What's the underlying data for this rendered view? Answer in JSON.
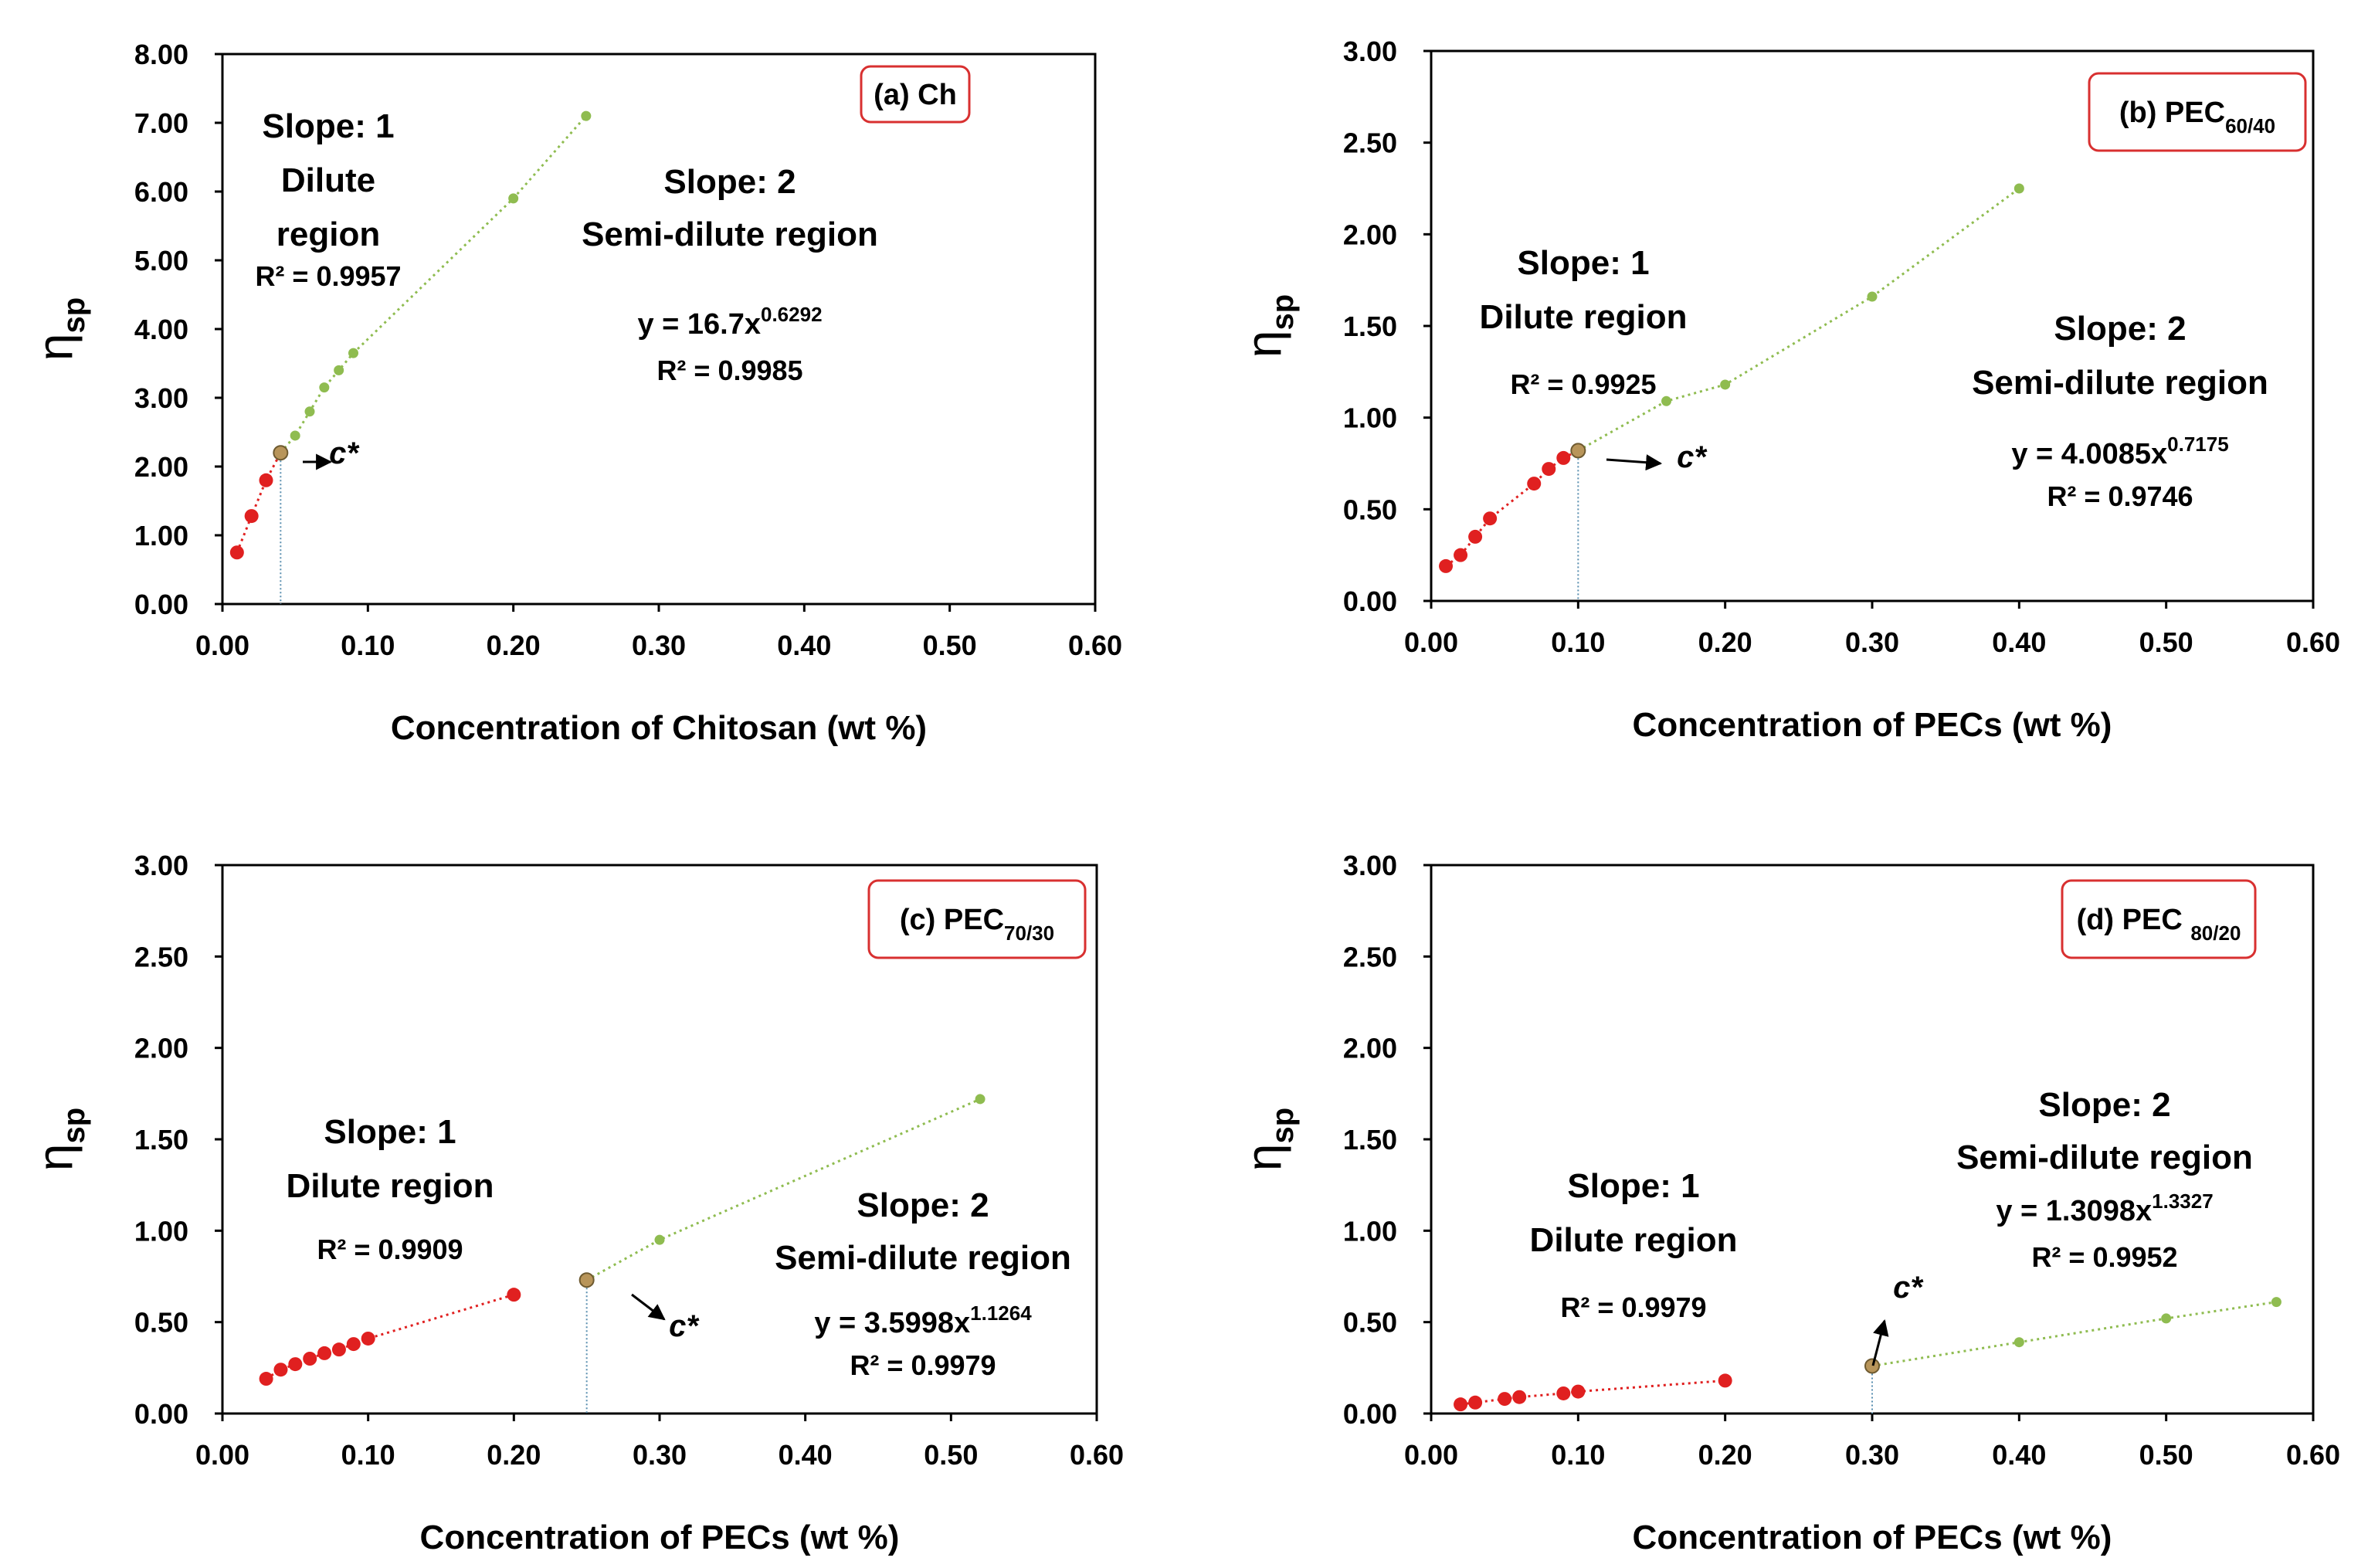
{
  "colors": {
    "dilute": "#e02020",
    "semi": "#8fbc50",
    "cstar_fill": "#b8955a",
    "cstar_stroke": "#6e5a30",
    "tag_border": "#d83030",
    "guide": "#5a8fb0"
  },
  "chart_data": [
    {
      "type": "scatter",
      "id": "a",
      "tag": {
        "main": "(a) Ch",
        "sub": ""
      },
      "xlabel": "Concentration of Chitosan (wt %)",
      "ylabel": {
        "main": "η",
        "sub": "sp"
      },
      "xlim": [
        0,
        0.6
      ],
      "ylim": [
        0,
        8
      ],
      "xticks": [
        "0.00",
        "0.10",
        "0.20",
        "0.30",
        "0.40",
        "0.50",
        "0.60"
      ],
      "yticks": [
        "0.00",
        "1.00",
        "2.00",
        "3.00",
        "4.00",
        "5.00",
        "6.00",
        "7.00",
        "8.00"
      ],
      "dilute": {
        "slope_label": "Slope: 1",
        "region_label": "Dilute region",
        "r2": "R² = 0.9957",
        "x": [
          0.01,
          0.02,
          0.03,
          0.04
        ],
        "y": [
          0.75,
          1.28,
          1.8,
          2.2
        ]
      },
      "semi": {
        "slope_label": "Slope: 2",
        "region_label": "Semi-dilute region",
        "eq": "y = 16.7x",
        "exp": "0.6292",
        "r2": "R² = 0.9985",
        "x": [
          0.04,
          0.05,
          0.06,
          0.07,
          0.08,
          0.09,
          0.2,
          0.25
        ],
        "y": [
          2.2,
          2.45,
          2.8,
          3.15,
          3.4,
          3.65,
          5.9,
          7.1
        ]
      },
      "cstar": {
        "label": "c*",
        "x": 0.04,
        "y": 2.2
      }
    },
    {
      "type": "scatter",
      "id": "b",
      "tag": {
        "main": "(b) PEC",
        "sub": "60/40"
      },
      "xlabel": "Concentration of PECs (wt %)",
      "ylabel": {
        "main": "η",
        "sub": "sp"
      },
      "xlim": [
        0,
        0.6
      ],
      "ylim": [
        0,
        3
      ],
      "xticks": [
        "0.00",
        "0.10",
        "0.20",
        "0.30",
        "0.40",
        "0.50",
        "0.60"
      ],
      "yticks": [
        "0.00",
        "0.50",
        "1.00",
        "1.50",
        "2.00",
        "2.50",
        "3.00"
      ],
      "dilute": {
        "slope_label": "Slope: 1",
        "region_label": "Dilute region",
        "r2": "R² = 0.9925",
        "x": [
          0.01,
          0.02,
          0.03,
          0.04,
          0.07,
          0.08,
          0.09,
          0.1
        ],
        "y": [
          0.19,
          0.25,
          0.35,
          0.45,
          0.64,
          0.72,
          0.78,
          0.82
        ]
      },
      "semi": {
        "slope_label": "Slope: 2",
        "region_label": "Semi-dilute region",
        "eq": "y = 4.0085x",
        "exp": "0.7175",
        "r2": "R² = 0.9746",
        "x": [
          0.1,
          0.16,
          0.2,
          0.3,
          0.4
        ],
        "y": [
          0.82,
          1.09,
          1.18,
          1.66,
          2.25
        ]
      },
      "cstar": {
        "label": "c*",
        "x": 0.1,
        "y": 0.82
      }
    },
    {
      "type": "scatter",
      "id": "c",
      "tag": {
        "main": "(c) PEC",
        "sub": "70/30"
      },
      "xlabel": "Concentration of PECs (wt %)",
      "ylabel": {
        "main": "η",
        "sub": "sp"
      },
      "xlim": [
        0,
        0.6
      ],
      "ylim": [
        0,
        3
      ],
      "xticks": [
        "0.00",
        "0.10",
        "0.20",
        "0.30",
        "0.40",
        "0.50",
        "0.60"
      ],
      "yticks": [
        "0.00",
        "0.50",
        "1.00",
        "1.50",
        "2.00",
        "2.50",
        "3.00"
      ],
      "dilute": {
        "slope_label": "Slope: 1",
        "region_label": "Dilute region",
        "r2": "R² = 0.9909",
        "x": [
          0.03,
          0.04,
          0.05,
          0.06,
          0.07,
          0.08,
          0.09,
          0.1,
          0.2
        ],
        "y": [
          0.19,
          0.24,
          0.27,
          0.3,
          0.33,
          0.35,
          0.38,
          0.41,
          0.65
        ]
      },
      "semi": {
        "slope_label": "Slope: 2",
        "region_label": "Semi-dilute region",
        "eq": "y = 3.5998x",
        "exp": "1.1264",
        "r2": "R² = 0.9979",
        "x": [
          0.25,
          0.3,
          0.52
        ],
        "y": [
          0.73,
          0.95,
          1.72
        ]
      },
      "cstar": {
        "label": "c*",
        "x": 0.25,
        "y": 0.73
      }
    },
    {
      "type": "scatter",
      "id": "d",
      "tag": {
        "main": "(d) PEC ",
        "sub": "80/20"
      },
      "xlabel": "Concentration of PECs (wt %)",
      "ylabel": {
        "main": "η",
        "sub": "sp"
      },
      "xlim": [
        0,
        0.6
      ],
      "ylim": [
        0,
        3
      ],
      "xticks": [
        "0.00",
        "0.10",
        "0.20",
        "0.30",
        "0.40",
        "0.50",
        "0.60"
      ],
      "yticks": [
        "0.00",
        "0.50",
        "1.00",
        "1.50",
        "2.00",
        "2.50",
        "3.00"
      ],
      "dilute": {
        "slope_label": "Slope: 1",
        "region_label": "Dilute region",
        "r2": "R² = 0.9979",
        "x": [
          0.02,
          0.03,
          0.05,
          0.06,
          0.09,
          0.1,
          0.2
        ],
        "y": [
          0.05,
          0.06,
          0.08,
          0.09,
          0.11,
          0.12,
          0.18
        ]
      },
      "semi": {
        "slope_label": "Slope: 2",
        "region_label": "Semi-dilute region",
        "eq": "y = 1.3098x",
        "exp": "1.3327",
        "r2": "R² = 0.9952",
        "x": [
          0.3,
          0.4,
          0.5,
          0.575
        ],
        "y": [
          0.26,
          0.39,
          0.52,
          0.61
        ]
      },
      "cstar": {
        "label": "c*",
        "x": 0.3,
        "y": 0.26
      }
    }
  ]
}
